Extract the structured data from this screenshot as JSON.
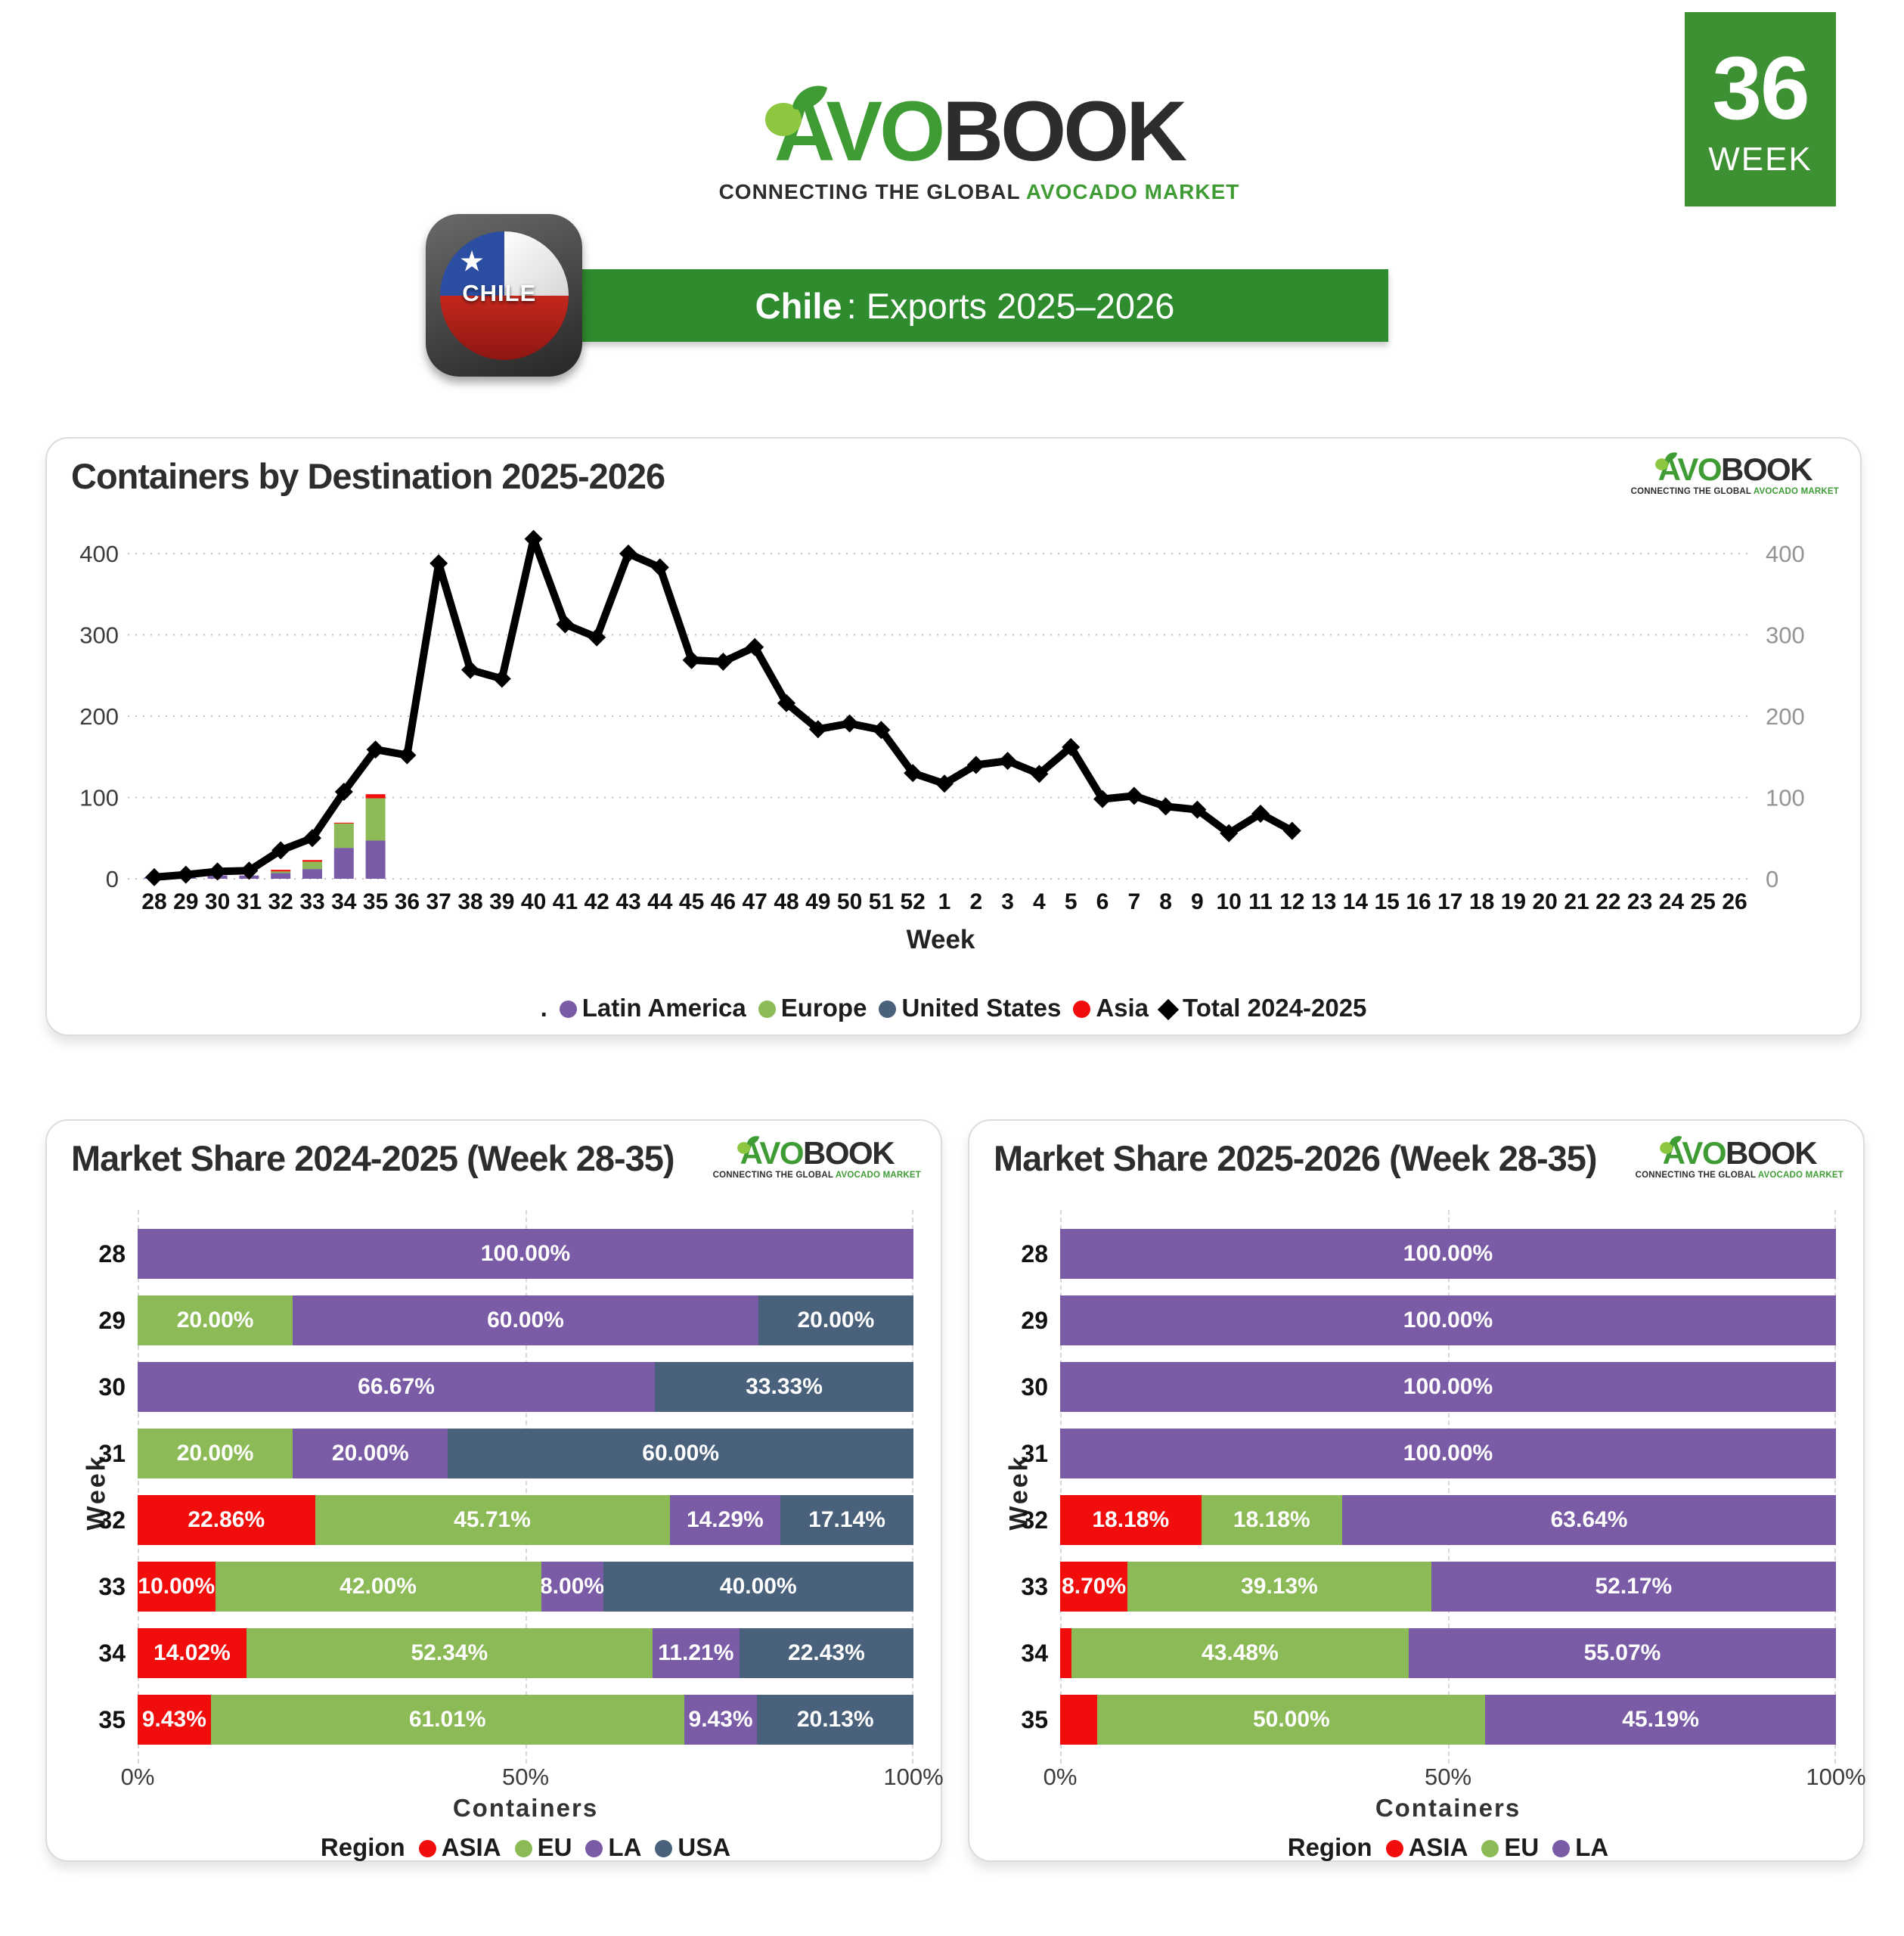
{
  "header": {
    "logo": {
      "avo": "AVO",
      "book": "BOOK",
      "tagline_prefix": "CONNECTING THE GLOBAL ",
      "tagline_highlight": "AVOCADO MARKET"
    },
    "week_badge": {
      "number": "36",
      "label": "WEEK"
    },
    "flag": {
      "label": "CHILE",
      "star": "★"
    },
    "banner": {
      "country": "Chile",
      "rest": ": Exports 2025–2026"
    }
  },
  "palette": {
    "LA": "#7a5ba6",
    "EU": "#8cba57",
    "USA": "#4a617c",
    "ASIA": "#f20d0d",
    "line": "#000000",
    "banner_green": "#2e8b2e",
    "badge_green": "#3e9133",
    "logo_green": "#3f9c35"
  },
  "top_chart": {
    "title": "Containers by Destination 2025-2026",
    "xlabel": "Week",
    "legend_prefix": ".",
    "legend": [
      {
        "label": "Latin America",
        "region": "LA",
        "marker": "dot"
      },
      {
        "label": "Europe",
        "region": "EU",
        "marker": "dot"
      },
      {
        "label": "United States",
        "region": "USA",
        "marker": "dot"
      },
      {
        "label": "Asia",
        "region": "ASIA",
        "marker": "dot"
      },
      {
        "label": "Total 2024-2025",
        "region": "line",
        "marker": "diamond"
      }
    ],
    "chart_data": {
      "type": "line+stacked-bar",
      "categories": [
        "28",
        "29",
        "30",
        "31",
        "32",
        "33",
        "34",
        "35",
        "36",
        "37",
        "38",
        "39",
        "40",
        "41",
        "42",
        "43",
        "44",
        "45",
        "46",
        "47",
        "48",
        "49",
        "50",
        "51",
        "52",
        "1",
        "2",
        "3",
        "4",
        "5",
        "6",
        "7",
        "8",
        "9",
        "10",
        "11",
        "12",
        "13",
        "14",
        "15",
        "16",
        "17",
        "18",
        "19",
        "20",
        "21",
        "22",
        "23",
        "24",
        "25",
        "26"
      ],
      "y_ticks": [
        0,
        100,
        200,
        300,
        400
      ],
      "ylim": [
        0,
        430
      ],
      "grid": "dotted-horizontal",
      "bar_series": [
        {
          "name": "Latin America",
          "region": "LA",
          "values": [
            2,
            2,
            4,
            4,
            7,
            12,
            38,
            47
          ]
        },
        {
          "name": "Europe",
          "region": "EU",
          "values": [
            0,
            0,
            0,
            0,
            2,
            9,
            30,
            52
          ]
        },
        {
          "name": "United States",
          "region": "USA",
          "values": [
            0,
            0,
            0,
            0,
            0,
            0,
            0,
            0
          ]
        },
        {
          "name": "Asia",
          "region": "ASIA",
          "values": [
            0,
            0,
            0,
            0,
            2,
            2,
            1,
            5
          ]
        }
      ],
      "line_series": {
        "name": "Total 2024-2025",
        "values": [
          2,
          5,
          9,
          10,
          35,
          50,
          107,
          159,
          152,
          388,
          257,
          246,
          418,
          313,
          297,
          400,
          383,
          269,
          267,
          285,
          216,
          184,
          191,
          183,
          130,
          117,
          140,
          145,
          129,
          162,
          98,
          102,
          89,
          85,
          56,
          80,
          59
        ]
      }
    }
  },
  "share_2024": {
    "title": "Market Share 2024-2025 (Week 28-35)",
    "xlabel": "Containers",
    "ylabel": "Week",
    "x_ticks": [
      "0%",
      "50%",
      "100%"
    ],
    "legend_title": "Region",
    "legend": [
      {
        "label": "ASIA",
        "region": "ASIA"
      },
      {
        "label": "EU",
        "region": "EU"
      },
      {
        "label": "LA",
        "region": "LA"
      },
      {
        "label": "USA",
        "region": "USA"
      }
    ],
    "chart_data": {
      "type": "stacked-bar-horizontal-percent",
      "rows": [
        {
          "week": "28",
          "segments": [
            {
              "region": "LA",
              "value": 100.0,
              "label": "100.00%"
            }
          ]
        },
        {
          "week": "29",
          "segments": [
            {
              "region": "EU",
              "value": 20.0,
              "label": "20.00%"
            },
            {
              "region": "LA",
              "value": 60.0,
              "label": "60.00%"
            },
            {
              "region": "USA",
              "value": 20.0,
              "label": "20.00%"
            }
          ]
        },
        {
          "week": "30",
          "segments": [
            {
              "region": "LA",
              "value": 66.67,
              "label": "66.67%"
            },
            {
              "region": "USA",
              "value": 33.33,
              "label": "33.33%"
            }
          ]
        },
        {
          "week": "31",
          "segments": [
            {
              "region": "EU",
              "value": 20.0,
              "label": "20.00%"
            },
            {
              "region": "LA",
              "value": 20.0,
              "label": "20.00%"
            },
            {
              "region": "USA",
              "value": 60.0,
              "label": "60.00%"
            }
          ]
        },
        {
          "week": "32",
          "segments": [
            {
              "region": "ASIA",
              "value": 22.86,
              "label": "22.86%"
            },
            {
              "region": "EU",
              "value": 45.71,
              "label": "45.71%"
            },
            {
              "region": "LA",
              "value": 14.29,
              "label": "14.29%"
            },
            {
              "region": "USA",
              "value": 17.14,
              "label": "17.14%"
            }
          ]
        },
        {
          "week": "33",
          "segments": [
            {
              "region": "ASIA",
              "value": 10.0,
              "label": "10.00%"
            },
            {
              "region": "EU",
              "value": 42.0,
              "label": "42.00%"
            },
            {
              "region": "LA",
              "value": 8.0,
              "label": "8.00%"
            },
            {
              "region": "USA",
              "value": 40.0,
              "label": "40.00%"
            }
          ]
        },
        {
          "week": "34",
          "segments": [
            {
              "region": "ASIA",
              "value": 14.02,
              "label": "14.02%"
            },
            {
              "region": "EU",
              "value": 52.34,
              "label": "52.34%"
            },
            {
              "region": "LA",
              "value": 11.21,
              "label": "11.21%"
            },
            {
              "region": "USA",
              "value": 22.43,
              "label": "22.43%"
            }
          ]
        },
        {
          "week": "35",
          "segments": [
            {
              "region": "ASIA",
              "value": 9.43,
              "label": "9.43%"
            },
            {
              "region": "EU",
              "value": 61.01,
              "label": "61.01%"
            },
            {
              "region": "LA",
              "value": 9.43,
              "label": "9.43%"
            },
            {
              "region": "USA",
              "value": 20.13,
              "label": "20.13%"
            }
          ]
        }
      ]
    }
  },
  "share_2025": {
    "title": "Market Share 2025-2026 (Week 28-35)",
    "xlabel": "Containers",
    "ylabel": "Week",
    "x_ticks": [
      "0%",
      "50%",
      "100%"
    ],
    "legend_title": "Region",
    "legend": [
      {
        "label": "ASIA",
        "region": "ASIA"
      },
      {
        "label": "EU",
        "region": "EU"
      },
      {
        "label": "LA",
        "region": "LA"
      }
    ],
    "chart_data": {
      "type": "stacked-bar-horizontal-percent",
      "rows": [
        {
          "week": "28",
          "segments": [
            {
              "region": "LA",
              "value": 100.0,
              "label": "100.00%"
            }
          ]
        },
        {
          "week": "29",
          "segments": [
            {
              "region": "LA",
              "value": 100.0,
              "label": "100.00%"
            }
          ]
        },
        {
          "week": "30",
          "segments": [
            {
              "region": "LA",
              "value": 100.0,
              "label": "100.00%"
            }
          ]
        },
        {
          "week": "31",
          "segments": [
            {
              "region": "LA",
              "value": 100.0,
              "label": "100.00%"
            }
          ]
        },
        {
          "week": "32",
          "segments": [
            {
              "region": "ASIA",
              "value": 18.18,
              "label": "18.18%"
            },
            {
              "region": "EU",
              "value": 18.18,
              "label": "18.18%"
            },
            {
              "region": "LA",
              "value": 63.64,
              "label": "63.64%"
            }
          ]
        },
        {
          "week": "33",
          "segments": [
            {
              "region": "ASIA",
              "value": 8.7,
              "label": "8.70%"
            },
            {
              "region": "EU",
              "value": 39.13,
              "label": "39.13%"
            },
            {
              "region": "LA",
              "value": 52.17,
              "label": "52.17%"
            }
          ]
        },
        {
          "week": "34",
          "segments": [
            {
              "region": "ASIA",
              "value": 1.45,
              "label": ""
            },
            {
              "region": "EU",
              "value": 43.48,
              "label": "43.48%"
            },
            {
              "region": "LA",
              "value": 55.07,
              "label": "55.07%"
            }
          ]
        },
        {
          "week": "35",
          "segments": [
            {
              "region": "ASIA",
              "value": 4.81,
              "label": ""
            },
            {
              "region": "EU",
              "value": 50.0,
              "label": "50.00%"
            },
            {
              "region": "LA",
              "value": 45.19,
              "label": "45.19%"
            }
          ]
        }
      ]
    }
  }
}
